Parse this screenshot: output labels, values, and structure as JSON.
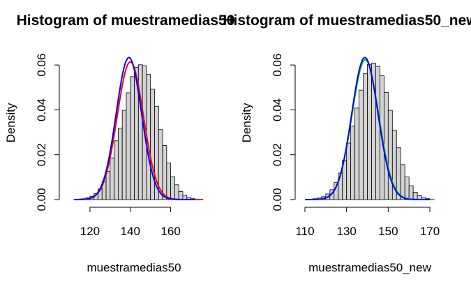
{
  "chart_data": [
    {
      "type": "histogram",
      "title": "Histogram of muestramedias50",
      "xlabel": "muestramedias50",
      "ylabel": "Density",
      "xlim": [
        110,
        175
      ],
      "ylim": [
        0,
        0.07
      ],
      "xticks": [
        120,
        140,
        160
      ],
      "yticks": [
        0.0,
        0.02,
        0.04,
        0.06
      ],
      "ytick_labels": [
        "0.00",
        "0.02",
        "0.04",
        "0.06"
      ],
      "bin_width": 2,
      "bins_start": 114,
      "bar_fill": "#d3d3d3",
      "densities": [
        0.0002,
        0.0004,
        0.0008,
        0.0015,
        0.0027,
        0.0047,
        0.0081,
        0.0126,
        0.0186,
        0.0262,
        0.0318,
        0.0398,
        0.0476,
        0.0548,
        0.0589,
        0.0601,
        0.0597,
        0.0558,
        0.0492,
        0.0416,
        0.0312,
        0.0241,
        0.0163,
        0.0102,
        0.0066,
        0.0036,
        0.0019,
        0.0009,
        0.0004,
        0.0002,
        0.0001
      ],
      "curves": [
        {
          "color": "#ff0000",
          "mean": 140,
          "sd": 6.5,
          "x_range": [
            112,
            175
          ]
        },
        {
          "color": "#0000ff",
          "mean": 139.3,
          "sd": 6.3,
          "x_range": [
            112,
            172
          ]
        }
      ]
    },
    {
      "type": "histogram",
      "title": "Histogram of muestramedias50_new",
      "xlabel": "muestramedias50_new",
      "ylabel": "Density",
      "xlim": [
        110,
        172
      ],
      "ylim": [
        0,
        0.07
      ],
      "xticks": [
        110,
        130,
        150,
        170
      ],
      "yticks": [
        0.0,
        0.02,
        0.04,
        0.06
      ],
      "ytick_labels": [
        "0.00",
        "0.02",
        "0.04",
        "0.06"
      ],
      "bin_width": 2,
      "bins_start": 112,
      "bar_fill": "#d3d3d3",
      "densities": [
        0.0002,
        0.0004,
        0.0007,
        0.0013,
        0.0025,
        0.0044,
        0.0077,
        0.0118,
        0.0176,
        0.0252,
        0.0327,
        0.0408,
        0.0488,
        0.0561,
        0.0603,
        0.0608,
        0.0594,
        0.0552,
        0.0478,
        0.0398,
        0.0309,
        0.0231,
        0.0156,
        0.0101,
        0.0062,
        0.0033,
        0.0017,
        0.0008,
        0.0004,
        0.0002
      ],
      "curves": [
        {
          "color": "#00cc00",
          "mean": 139,
          "sd": 6.4,
          "x_range": [
            110,
            172
          ]
        },
        {
          "color": "#0000ff",
          "mean": 138.8,
          "sd": 6.3,
          "x_range": [
            110,
            170
          ]
        }
      ]
    }
  ]
}
